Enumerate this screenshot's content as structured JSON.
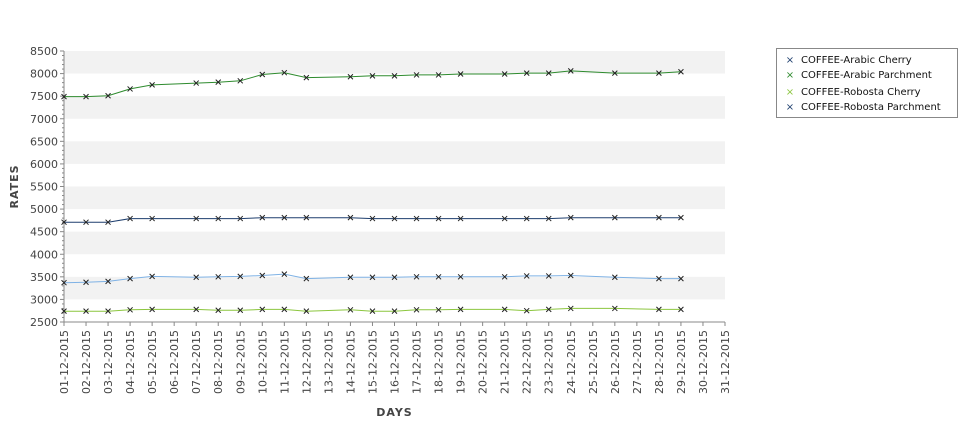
{
  "chart_data": {
    "type": "line",
    "xlabel": "DAYS",
    "ylabel": "RATES",
    "ylim": [
      2500,
      8500
    ],
    "yticks": [
      2500,
      3000,
      3500,
      4000,
      4500,
      5000,
      5500,
      6000,
      6500,
      7000,
      7500,
      8000,
      8500
    ],
    "grid": "alternating horizontal bands",
    "legend_position": "right",
    "categories": [
      "01-12-2015",
      "02-12-2015",
      "03-12-2015",
      "04-12-2015",
      "05-12-2015",
      "06-12-2015",
      "07-12-2015",
      "08-12-2015",
      "09-12-2015",
      "10-12-2015",
      "11-12-2015",
      "12-12-2015",
      "13-12-2015",
      "14-12-2015",
      "15-12-2015",
      "16-12-2015",
      "17-12-2015",
      "18-12-2015",
      "19-12-2015",
      "20-12-2015",
      "21-12-2015",
      "22-12-2015",
      "23-12-2015",
      "24-12-2015",
      "25-12-2015",
      "26-12-2015",
      "27-12-2015",
      "28-12-2015",
      "29-12-2015",
      "30-12-2015",
      "31-12-2015"
    ],
    "series": [
      {
        "name": "COFFEE-Arabic Cherry",
        "color": "#7fb2e5",
        "points": [
          {
            "x": "01-12-2015",
            "y": 3370
          },
          {
            "x": "02-12-2015",
            "y": 3380
          },
          {
            "x": "03-12-2015",
            "y": 3400
          },
          {
            "x": "04-12-2015",
            "y": 3460
          },
          {
            "x": "05-12-2015",
            "y": 3510
          },
          {
            "x": "07-12-2015",
            "y": 3490
          },
          {
            "x": "08-12-2015",
            "y": 3500
          },
          {
            "x": "09-12-2015",
            "y": 3510
          },
          {
            "x": "10-12-2015",
            "y": 3530
          },
          {
            "x": "11-12-2015",
            "y": 3560
          },
          {
            "x": "12-12-2015",
            "y": 3460
          },
          {
            "x": "14-12-2015",
            "y": 3490
          },
          {
            "x": "15-12-2015",
            "y": 3490
          },
          {
            "x": "16-12-2015",
            "y": 3490
          },
          {
            "x": "17-12-2015",
            "y": 3500
          },
          {
            "x": "18-12-2015",
            "y": 3500
          },
          {
            "x": "19-12-2015",
            "y": 3500
          },
          {
            "x": "21-12-2015",
            "y": 3500
          },
          {
            "x": "22-12-2015",
            "y": 3520
          },
          {
            "x": "23-12-2015",
            "y": 3520
          },
          {
            "x": "24-12-2015",
            "y": 3530
          },
          {
            "x": "26-12-2015",
            "y": 3490
          },
          {
            "x": "28-12-2015",
            "y": 3460
          },
          {
            "x": "29-12-2015",
            "y": 3460
          }
        ]
      },
      {
        "name": "COFFEE-Arabic Parchment",
        "color": "#2e8b2e",
        "points": [
          {
            "x": "01-12-2015",
            "y": 7490
          },
          {
            "x": "02-12-2015",
            "y": 7490
          },
          {
            "x": "03-12-2015",
            "y": 7510
          },
          {
            "x": "04-12-2015",
            "y": 7660
          },
          {
            "x": "05-12-2015",
            "y": 7750
          },
          {
            "x": "07-12-2015",
            "y": 7790
          },
          {
            "x": "08-12-2015",
            "y": 7810
          },
          {
            "x": "09-12-2015",
            "y": 7840
          },
          {
            "x": "10-12-2015",
            "y": 7980
          },
          {
            "x": "11-12-2015",
            "y": 8020
          },
          {
            "x": "12-12-2015",
            "y": 7910
          },
          {
            "x": "14-12-2015",
            "y": 7930
          },
          {
            "x": "15-12-2015",
            "y": 7950
          },
          {
            "x": "16-12-2015",
            "y": 7950
          },
          {
            "x": "17-12-2015",
            "y": 7970
          },
          {
            "x": "18-12-2015",
            "y": 7970
          },
          {
            "x": "19-12-2015",
            "y": 7990
          },
          {
            "x": "21-12-2015",
            "y": 7990
          },
          {
            "x": "22-12-2015",
            "y": 8010
          },
          {
            "x": "23-12-2015",
            "y": 8010
          },
          {
            "x": "24-12-2015",
            "y": 8060
          },
          {
            "x": "26-12-2015",
            "y": 8010
          },
          {
            "x": "28-12-2015",
            "y": 8010
          },
          {
            "x": "29-12-2015",
            "y": 8040
          }
        ]
      },
      {
        "name": "COFFEE-Robosta Cherry",
        "color": "#8cc63f",
        "points": [
          {
            "x": "01-12-2015",
            "y": 2740
          },
          {
            "x": "02-12-2015",
            "y": 2740
          },
          {
            "x": "03-12-2015",
            "y": 2740
          },
          {
            "x": "04-12-2015",
            "y": 2770
          },
          {
            "x": "05-12-2015",
            "y": 2780
          },
          {
            "x": "07-12-2015",
            "y": 2780
          },
          {
            "x": "08-12-2015",
            "y": 2760
          },
          {
            "x": "09-12-2015",
            "y": 2760
          },
          {
            "x": "10-12-2015",
            "y": 2780
          },
          {
            "x": "11-12-2015",
            "y": 2780
          },
          {
            "x": "12-12-2015",
            "y": 2740
          },
          {
            "x": "14-12-2015",
            "y": 2770
          },
          {
            "x": "15-12-2015",
            "y": 2740
          },
          {
            "x": "16-12-2015",
            "y": 2740
          },
          {
            "x": "17-12-2015",
            "y": 2770
          },
          {
            "x": "18-12-2015",
            "y": 2770
          },
          {
            "x": "19-12-2015",
            "y": 2780
          },
          {
            "x": "21-12-2015",
            "y": 2780
          },
          {
            "x": "22-12-2015",
            "y": 2750
          },
          {
            "x": "23-12-2015",
            "y": 2780
          },
          {
            "x": "24-12-2015",
            "y": 2800
          },
          {
            "x": "26-12-2015",
            "y": 2800
          },
          {
            "x": "28-12-2015",
            "y": 2780
          },
          {
            "x": "29-12-2015",
            "y": 2780
          }
        ]
      },
      {
        "name": "COFFEE-Robosta Parchment",
        "color": "#1f3f6e",
        "points": [
          {
            "x": "01-12-2015",
            "y": 4710
          },
          {
            "x": "02-12-2015",
            "y": 4710
          },
          {
            "x": "03-12-2015",
            "y": 4710
          },
          {
            "x": "04-12-2015",
            "y": 4790
          },
          {
            "x": "05-12-2015",
            "y": 4790
          },
          {
            "x": "07-12-2015",
            "y": 4790
          },
          {
            "x": "08-12-2015",
            "y": 4790
          },
          {
            "x": "09-12-2015",
            "y": 4790
          },
          {
            "x": "10-12-2015",
            "y": 4810
          },
          {
            "x": "11-12-2015",
            "y": 4810
          },
          {
            "x": "12-12-2015",
            "y": 4810
          },
          {
            "x": "14-12-2015",
            "y": 4810
          },
          {
            "x": "15-12-2015",
            "y": 4790
          },
          {
            "x": "16-12-2015",
            "y": 4790
          },
          {
            "x": "17-12-2015",
            "y": 4790
          },
          {
            "x": "18-12-2015",
            "y": 4790
          },
          {
            "x": "19-12-2015",
            "y": 4790
          },
          {
            "x": "21-12-2015",
            "y": 4790
          },
          {
            "x": "22-12-2015",
            "y": 4790
          },
          {
            "x": "23-12-2015",
            "y": 4790
          },
          {
            "x": "24-12-2015",
            "y": 4810
          },
          {
            "x": "26-12-2015",
            "y": 4810
          },
          {
            "x": "28-12-2015",
            "y": 4810
          },
          {
            "x": "29-12-2015",
            "y": 4810
          }
        ]
      }
    ]
  }
}
